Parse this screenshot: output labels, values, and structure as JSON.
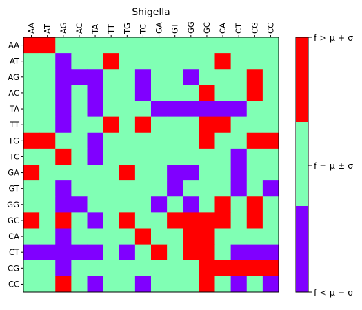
{
  "chart_data": {
    "type": "heatmap",
    "title": "Shigella",
    "xlabel": "",
    "ylabel": "",
    "x_labels": [
      "AA",
      "AT",
      "AG",
      "AC",
      "TA",
      "TT",
      "TG",
      "TC",
      "GA",
      "GT",
      "GG",
      "GC",
      "CA",
      "CT",
      "CG",
      "CC"
    ],
    "y_labels": [
      "AA",
      "AT",
      "AG",
      "AC",
      "TA",
      "TT",
      "TG",
      "TC",
      "GA",
      "GT",
      "GG",
      "GC",
      "CA",
      "CT",
      "CG",
      "CC"
    ],
    "value_encoding": {
      "-1": "f < mu - sigma",
      "0": "f = mu +/- sigma",
      "1": "f > mu + sigma"
    },
    "values": [
      [
        1,
        1,
        0,
        0,
        0,
        0,
        0,
        0,
        0,
        0,
        0,
        0,
        0,
        0,
        0,
        0
      ],
      [
        0,
        0,
        -1,
        0,
        0,
        1,
        0,
        0,
        0,
        0,
        0,
        0,
        1,
        0,
        0,
        0
      ],
      [
        0,
        0,
        -1,
        -1,
        -1,
        0,
        0,
        -1,
        0,
        0,
        -1,
        0,
        0,
        0,
        1,
        0
      ],
      [
        0,
        0,
        -1,
        0,
        -1,
        0,
        0,
        -1,
        0,
        0,
        0,
        1,
        0,
        0,
        1,
        0
      ],
      [
        0,
        0,
        -1,
        0,
        -1,
        0,
        0,
        0,
        -1,
        -1,
        -1,
        -1,
        -1,
        -1,
        0,
        0
      ],
      [
        0,
        0,
        -1,
        0,
        0,
        1,
        0,
        1,
        0,
        0,
        0,
        1,
        1,
        0,
        0,
        0
      ],
      [
        1,
        1,
        0,
        0,
        -1,
        0,
        0,
        0,
        0,
        0,
        0,
        1,
        0,
        0,
        1,
        1
      ],
      [
        0,
        0,
        1,
        0,
        -1,
        0,
        0,
        0,
        0,
        0,
        0,
        0,
        0,
        -1,
        0,
        0
      ],
      [
        1,
        0,
        0,
        0,
        0,
        0,
        1,
        0,
        0,
        -1,
        -1,
        0,
        0,
        -1,
        0,
        0
      ],
      [
        0,
        0,
        -1,
        0,
        0,
        0,
        0,
        0,
        0,
        -1,
        0,
        0,
        0,
        -1,
        0,
        -1
      ],
      [
        0,
        0,
        -1,
        -1,
        0,
        0,
        0,
        0,
        -1,
        0,
        -1,
        0,
        1,
        0,
        1,
        0
      ],
      [
        1,
        0,
        1,
        0,
        -1,
        0,
        1,
        0,
        0,
        1,
        1,
        1,
        1,
        0,
        1,
        0
      ],
      [
        0,
        0,
        -1,
        0,
        0,
        0,
        0,
        1,
        0,
        0,
        1,
        1,
        0,
        0,
        0,
        0
      ],
      [
        -1,
        -1,
        -1,
        -1,
        -1,
        0,
        -1,
        0,
        1,
        0,
        1,
        1,
        0,
        -1,
        -1,
        -1
      ],
      [
        0,
        0,
        -1,
        0,
        0,
        0,
        0,
        0,
        0,
        0,
        0,
        1,
        1,
        1,
        1,
        1
      ],
      [
        0,
        0,
        1,
        0,
        -1,
        0,
        0,
        -1,
        0,
        0,
        0,
        1,
        0,
        -1,
        0,
        -1
      ]
    ],
    "colorbar": {
      "colors": {
        "low": "#8000ff",
        "mid": "#80ffb4",
        "high": "#ff0000"
      },
      "tick_labels": [
        "f < μ − σ",
        "f = μ ± σ",
        "f > μ + σ"
      ]
    },
    "grid": false,
    "legend": "colorbar-right"
  }
}
